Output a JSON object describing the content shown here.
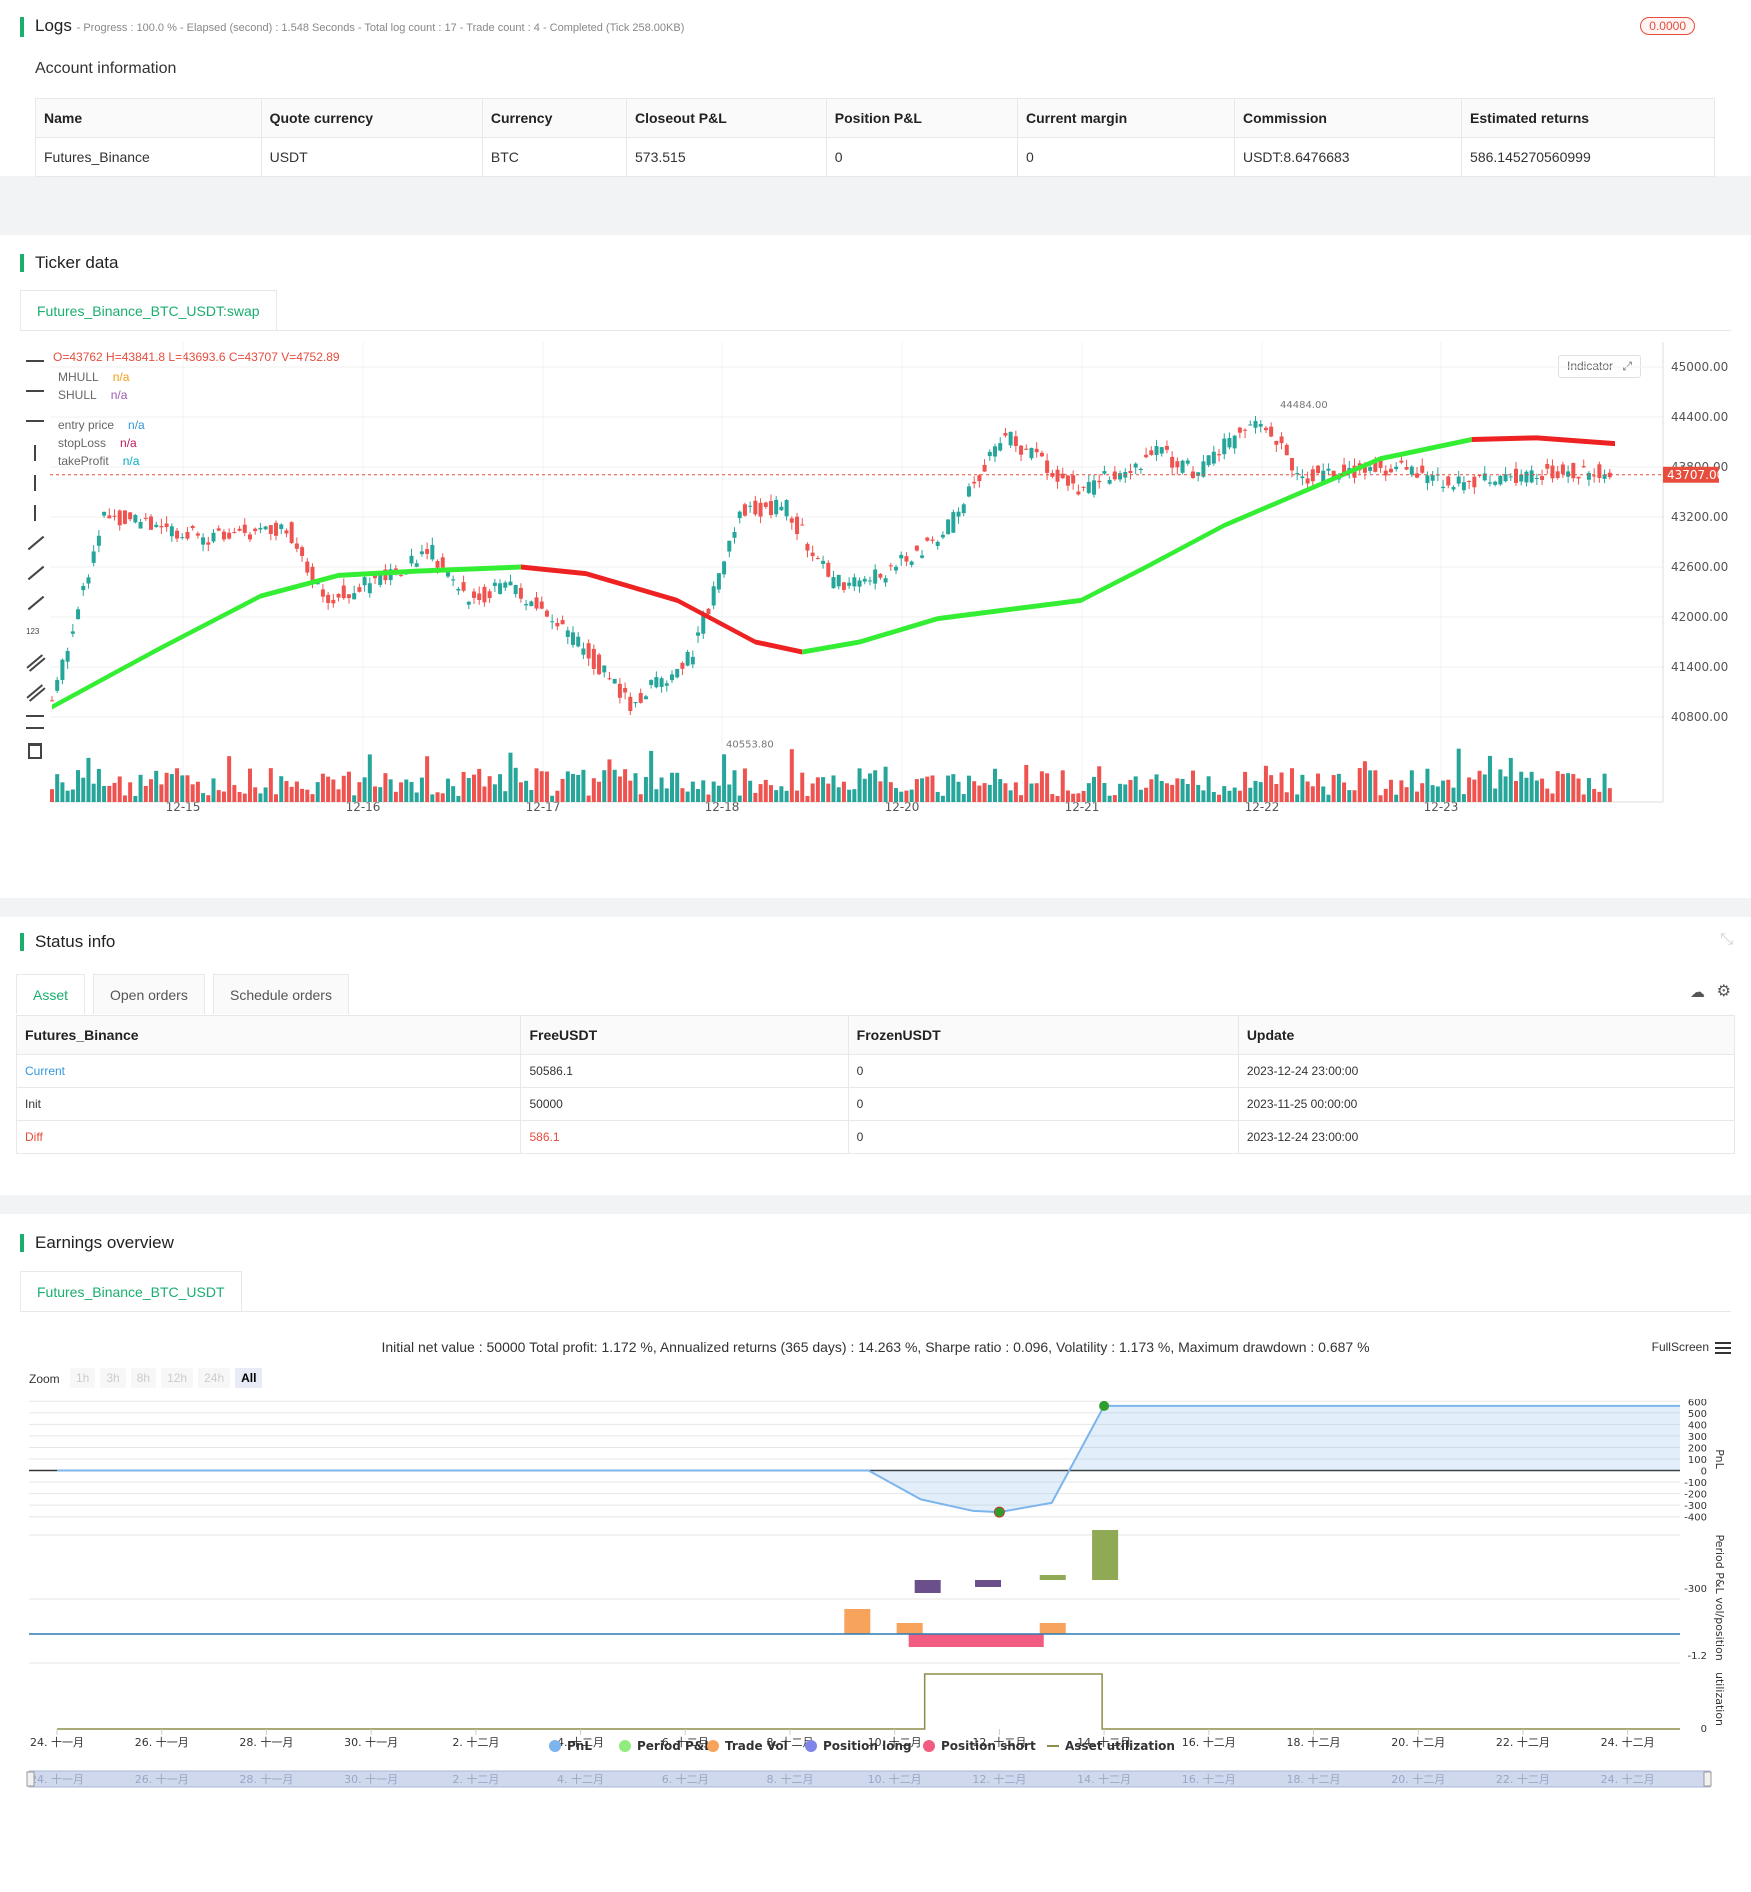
{
  "logs": {
    "title": "Logs",
    "summary": "- Progress : 100.0 % - Elapsed (second) : 1.548  Seconds - Total log count : 17 - Trade count : 4 - Completed (Tick 258.00KB)",
    "badge": "0.0000",
    "account_title": "Account information",
    "columns": [
      "Name",
      "Quote currency",
      "Currency",
      "Closeout P&L",
      "Position P&L",
      "Current margin",
      "Commission",
      "Estimated returns"
    ],
    "row": [
      "Futures_Binance",
      "USDT",
      "BTC",
      "573.515",
      "0",
      "0",
      "USDT:8.6476683",
      "586.145270560999"
    ]
  },
  "ticker": {
    "title": "Ticker data",
    "tab": "Futures_Binance_BTC_USDT:swap",
    "ohlc": "O=43762 H=43841.8 L=43693.6 C=43707 V=4752.89",
    "legend": [
      {
        "name": "MHULL",
        "value": "n/a",
        "color": "#f39c12"
      },
      {
        "name": "SHULL",
        "value": "n/a",
        "color": "#9b59b6"
      },
      {
        "name": "entry price",
        "value": "n/a",
        "color": "#3498db"
      },
      {
        "name": "stopLoss",
        "value": "n/a",
        "color": "#c2185b"
      },
      {
        "name": "takeProfit",
        "value": "n/a",
        "color": "#00acc1"
      }
    ],
    "indicator_btn": "Indicator",
    "y_ticks": [
      "45000.00",
      "44400.00",
      "43800.00",
      "43200.00",
      "42600.00",
      "42000.00",
      "41400.00",
      "40800.00"
    ],
    "x_ticks": [
      "12-15",
      "12-16",
      "12-17",
      "12-18",
      "12-20",
      "12-21",
      "12-22",
      "12-23"
    ],
    "last_price": "43707.00",
    "high_label": "44484.00",
    "low_label": "40553.80"
  },
  "status": {
    "title": "Status info",
    "tabs": [
      "Asset",
      "Open orders",
      "Schedule orders"
    ],
    "columns": [
      "Futures_Binance",
      "FreeUSDT",
      "FrozenUSDT",
      "Update"
    ],
    "rows": [
      [
        "Current",
        "50586.1",
        "0",
        "2023-12-24 23:00:00"
      ],
      [
        "Init",
        "50000",
        "0",
        "2023-11-25 00:00:00"
      ],
      [
        "Diff",
        "586.1",
        "0",
        "2023-12-24 23:00:00"
      ]
    ]
  },
  "earnings": {
    "title": "Earnings overview",
    "tab": "Futures_Binance_BTC_USDT",
    "summary": "Initial net value : 50000 Total profit: 1.172 %, Annualized returns (365 days) : 14.263 %, Sharpe ratio : 0.096, Volatility : 1.173 %, Maximum drawdown : 0.687 %",
    "fullscreen": "FullScreen",
    "zoom_label": "Zoom",
    "zoom_buttons": [
      "1h",
      "3h",
      "8h",
      "12h",
      "24h",
      "All"
    ],
    "pnl_ticks": [
      "600",
      "500",
      "400",
      "300",
      "200",
      "100",
      "0",
      "-100",
      "-200",
      "-300",
      "-400"
    ],
    "axis_titles": [
      "PnL",
      "Period P&L",
      "vol/position",
      "utilization"
    ],
    "period_tick": "-300",
    "vol_tick": "-1.2",
    "util_tick": "0",
    "x_ticks": [
      "24. 十一月",
      "26. 十一月",
      "28. 十一月",
      "30. 十一月",
      "2. 十二月",
      "4. 十二月",
      "6. 十二月",
      "8. 十二月",
      "10. 十二月",
      "12. 十二月",
      "14. 十二月",
      "16. 十二月",
      "18. 十二月",
      "20. 十二月",
      "22. 十二月",
      "24. 十二月"
    ],
    "legend": [
      {
        "name": "PnL",
        "color": "#7cb5ec"
      },
      {
        "name": "Period P&L",
        "color": "#90ed7d"
      },
      {
        "name": "Trade Vol",
        "color": "#f7a35c"
      },
      {
        "name": "Position long",
        "color": "#8085e9"
      },
      {
        "name": "Position short",
        "color": "#f15c80"
      },
      {
        "name": "Asset utilization",
        "color": "#8d8d4a"
      }
    ]
  }
}
